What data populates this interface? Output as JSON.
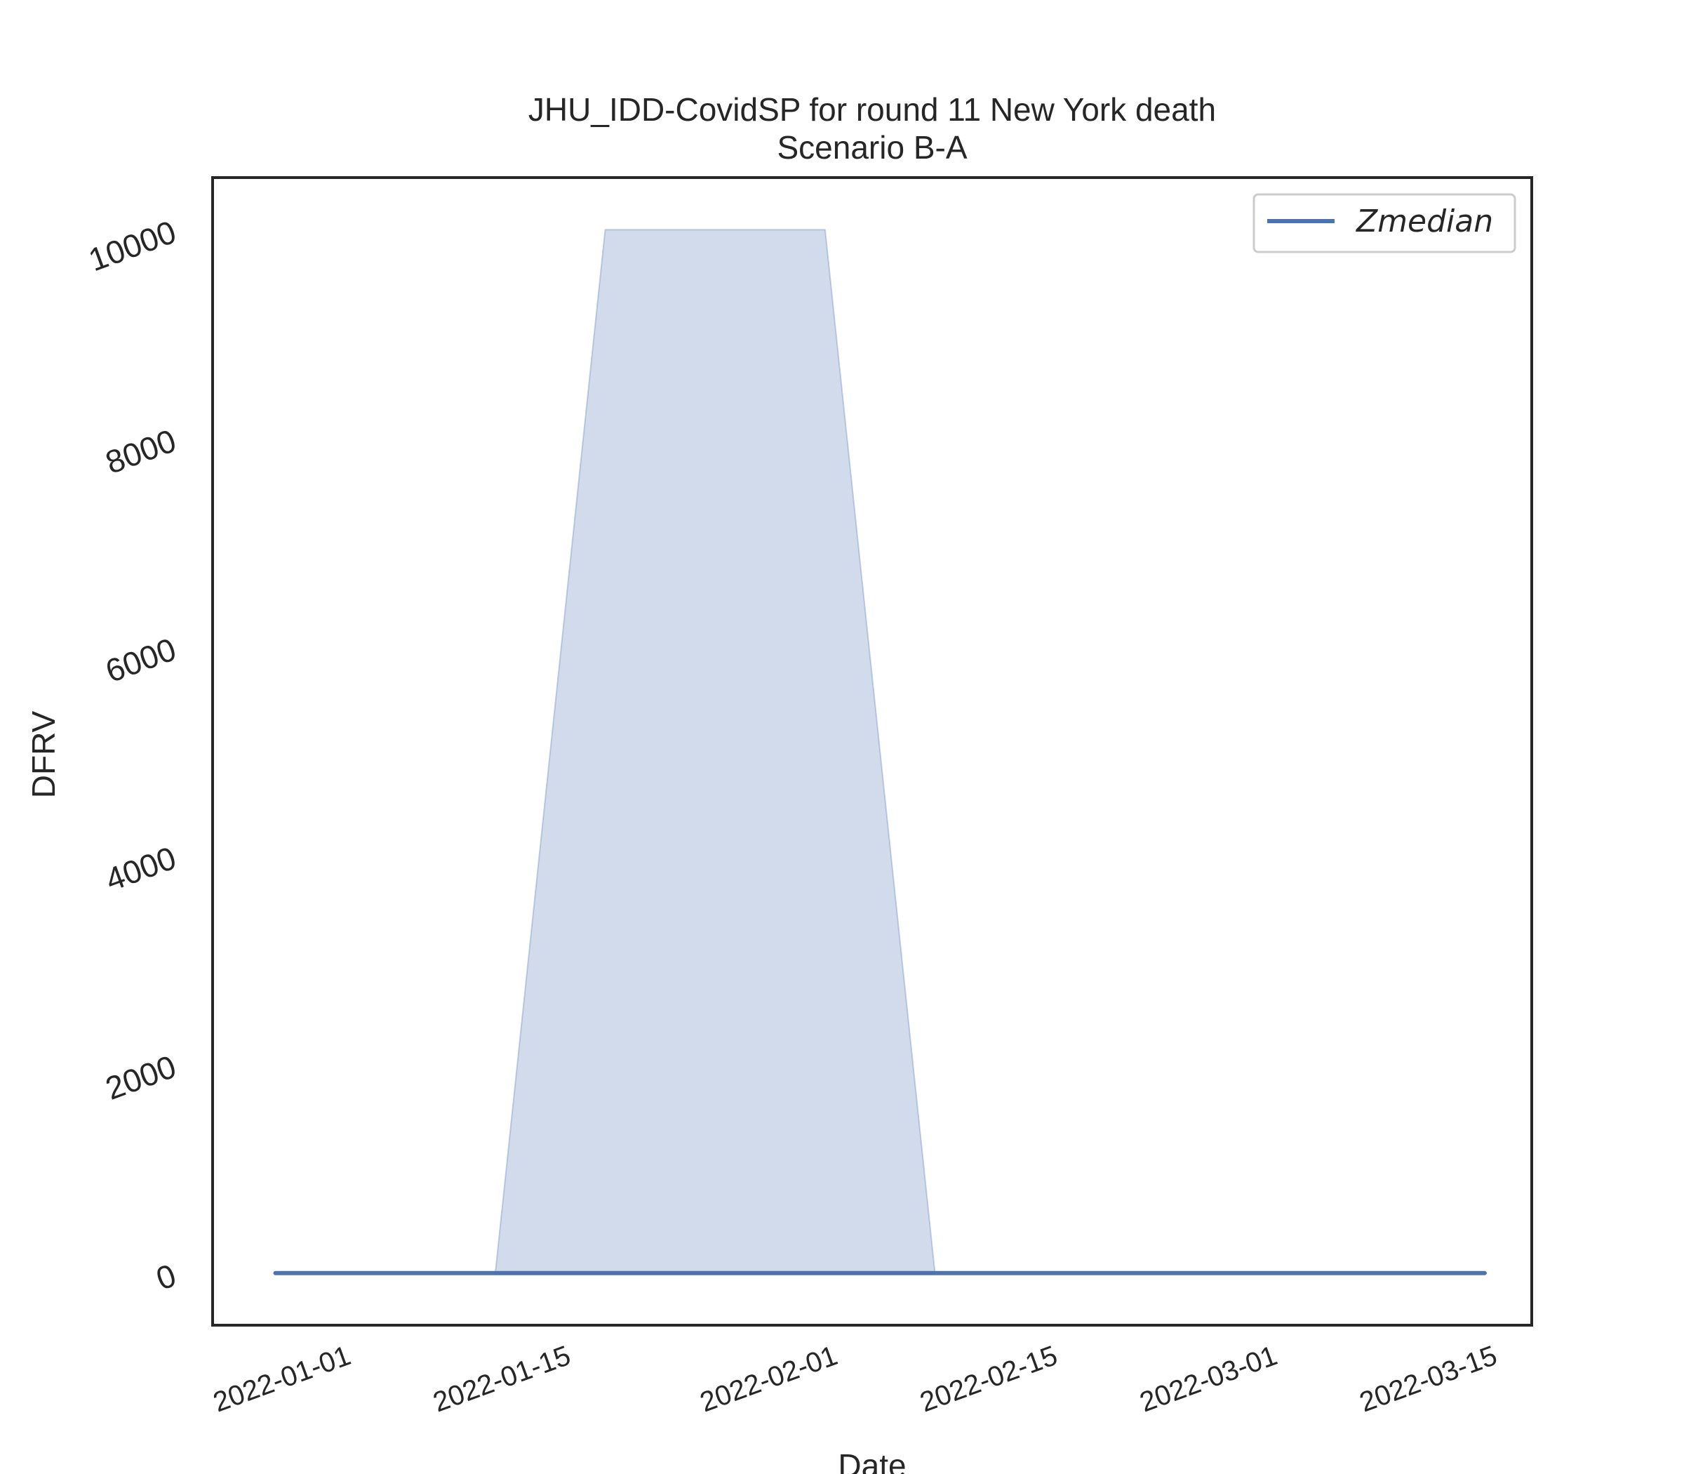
{
  "chart_data": {
    "type": "line",
    "title": "JHU_IDD-CovidSP for round 11 New York death",
    "subtitle": "Scenario B-A",
    "xlabel": "Date",
    "ylabel": "DFRV",
    "x_ticks": [
      "2022-01-01",
      "2022-01-15",
      "2022-02-01",
      "2022-02-15",
      "2022-03-01",
      "2022-03-15"
    ],
    "y_ticks": [
      0,
      2000,
      4000,
      6000,
      8000,
      10000
    ],
    "xlim": [
      "2021-12-23",
      "2022-03-17"
    ],
    "ylim": [
      -500,
      10500
    ],
    "grid": false,
    "legend_position": "top-right",
    "colors": {
      "line": "#4c72b0",
      "band": "#4c72b0"
    },
    "series": [
      {
        "name": "Zmedian",
        "x": [
          "2021-12-27",
          "2022-01-10",
          "2022-01-17",
          "2022-01-31",
          "2022-02-07",
          "2022-03-14"
        ],
        "values": [
          0,
          0,
          0,
          0,
          0,
          0
        ]
      }
    ],
    "band": {
      "x": [
        "2021-12-27",
        "2022-01-10",
        "2022-01-17",
        "2022-01-31",
        "2022-02-07",
        "2022-03-14"
      ],
      "lower": [
        0,
        0,
        0,
        0,
        0,
        0
      ],
      "upper": [
        0,
        0,
        10000,
        10000,
        0,
        0
      ]
    }
  }
}
